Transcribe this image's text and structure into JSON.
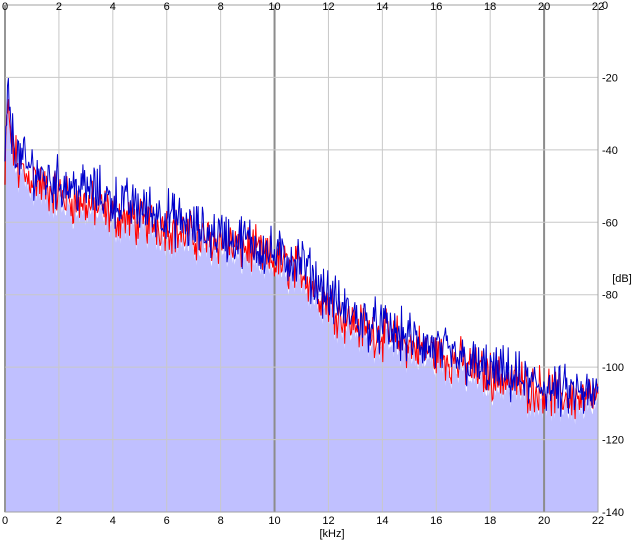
{
  "chart_data": {
    "type": "line",
    "title": "",
    "xlabel": "[kHz]",
    "ylabel": "[dB]",
    "xlim": [
      0,
      22
    ],
    "ylim": [
      -140,
      0
    ],
    "x_ticks": [
      "0",
      "2",
      "4",
      "6",
      "8",
      "10",
      "12",
      "14",
      "16",
      "18",
      "20",
      "22"
    ],
    "y_ticks": [
      "0",
      "-20",
      "-40",
      "-60",
      "-80",
      "-100",
      "-120",
      "-140"
    ],
    "grid": true,
    "colors": {
      "background": "#ffffff",
      "grid_minor": "#c8c8c8",
      "grid_major": "#8c8c8c",
      "fill": "#c0c0ff",
      "series_red": "#ff0000",
      "series_blue": "#0000cc"
    },
    "series": [
      {
        "color": "#ff0000",
        "x": [
          0.0,
          0.05,
          0.1,
          0.15,
          0.2,
          0.3,
          0.4,
          0.5,
          0.6,
          0.8,
          1.0,
          1.5,
          2.0,
          2.5,
          3.0,
          3.5,
          4.0,
          4.5,
          5.0,
          5.5,
          6.0,
          6.5,
          7.0,
          7.5,
          8.0,
          8.5,
          9.0,
          9.5,
          10.0,
          10.5,
          11.0,
          11.5,
          12.0,
          12.5,
          13.0,
          13.5,
          14.0,
          14.5,
          15.0,
          15.5,
          16.0,
          16.5,
          17.0,
          17.5,
          18.0,
          18.5,
          19.0,
          19.5,
          20.0,
          20.5,
          21.0,
          21.5,
          22.0
        ],
        "values": [
          -50,
          -35,
          -28,
          -32,
          -36,
          -40,
          -42,
          -46,
          -45,
          -48,
          -47,
          -51,
          -52,
          -54,
          -55,
          -56,
          -58,
          -59,
          -60,
          -60,
          -61,
          -63,
          -64,
          -65,
          -65,
          -67,
          -67,
          -69,
          -71,
          -72,
          -73,
          -78,
          -82,
          -86,
          -88,
          -90,
          -91,
          -92,
          -94,
          -95,
          -96,
          -98,
          -99,
          -101,
          -102,
          -103,
          -104,
          -106,
          -106,
          -108,
          -108,
          -109,
          -109
        ]
      },
      {
        "color": "#0000cc",
        "x": [
          0.0,
          0.05,
          0.1,
          0.15,
          0.2,
          0.3,
          0.4,
          0.5,
          0.6,
          0.8,
          1.0,
          1.5,
          2.0,
          2.5,
          3.0,
          3.5,
          4.0,
          4.5,
          5.0,
          5.5,
          6.0,
          6.5,
          7.0,
          7.5,
          8.0,
          8.5,
          9.0,
          9.5,
          10.0,
          10.5,
          11.0,
          11.5,
          12.0,
          12.5,
          13.0,
          13.5,
          14.0,
          14.5,
          15.0,
          15.5,
          16.0,
          16.5,
          17.0,
          17.5,
          18.0,
          18.5,
          19.0,
          19.5,
          20.0,
          20.5,
          21.0,
          21.5,
          22.0
        ],
        "values": [
          -48,
          -30,
          -24,
          -28,
          -33,
          -37,
          -39,
          -43,
          -42,
          -45,
          -45,
          -48,
          -49,
          -50,
          -51,
          -52,
          -54,
          -55,
          -56,
          -57,
          -58,
          -60,
          -62,
          -63,
          -63,
          -65,
          -65,
          -67,
          -69,
          -70,
          -71,
          -76,
          -80,
          -84,
          -86,
          -88,
          -89,
          -91,
          -92,
          -94,
          -95,
          -97,
          -98,
          -100,
          -101,
          -102,
          -103,
          -105,
          -105,
          -107,
          -107,
          -108,
          -108
        ]
      }
    ]
  }
}
